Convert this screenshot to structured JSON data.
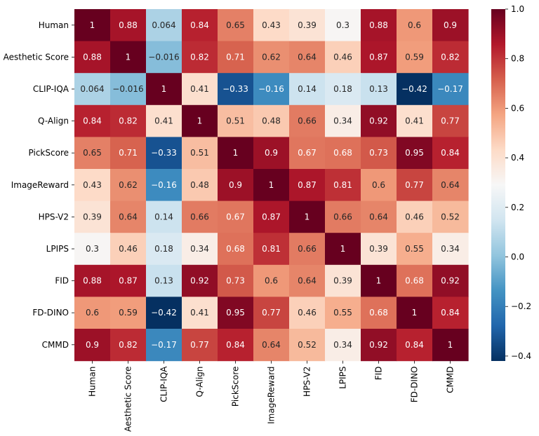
{
  "chart_data": {
    "type": "heatmap",
    "title": "",
    "xlabel": "",
    "ylabel": "",
    "rows": [
      "Human",
      "Aesthetic Score",
      "CLIP-IQA",
      "Q-Align",
      "PickScore",
      "ImageReward",
      "HPS-V2",
      "LPIPS",
      "FID",
      "FD-DINO",
      "CMMD"
    ],
    "columns": [
      "Human",
      "Aesthetic Score",
      "CLIP-IQA",
      "Q-Align",
      "PickScore",
      "ImageReward",
      "HPS-V2",
      "LPIPS",
      "FID",
      "FD-DINO",
      "CMMD"
    ],
    "values": [
      [
        1,
        0.88,
        0.064,
        0.84,
        0.65,
        0.43,
        0.39,
        0.3,
        0.88,
        0.6,
        0.9
      ],
      [
        0.88,
        1,
        -0.016,
        0.82,
        0.71,
        0.62,
        0.64,
        0.46,
        0.87,
        0.59,
        0.82
      ],
      [
        0.064,
        -0.016,
        1,
        0.41,
        -0.33,
        -0.16,
        0.14,
        0.18,
        0.13,
        -0.42,
        -0.17
      ],
      [
        0.84,
        0.82,
        0.41,
        1,
        0.51,
        0.48,
        0.66,
        0.34,
        0.92,
        0.41,
        0.77
      ],
      [
        0.65,
        0.71,
        -0.33,
        0.51,
        1,
        0.9,
        0.67,
        0.68,
        0.73,
        0.95,
        0.84
      ],
      [
        0.43,
        0.62,
        -0.16,
        0.48,
        0.9,
        1,
        0.87,
        0.81,
        0.6,
        0.77,
        0.64
      ],
      [
        0.39,
        0.64,
        0.14,
        0.66,
        0.67,
        0.87,
        1,
        0.66,
        0.64,
        0.46,
        0.52
      ],
      [
        0.3,
        0.46,
        0.18,
        0.34,
        0.68,
        0.81,
        0.66,
        1,
        0.39,
        0.55,
        0.34
      ],
      [
        0.88,
        0.87,
        0.13,
        0.92,
        0.73,
        0.6,
        0.64,
        0.39,
        1,
        0.68,
        0.92
      ],
      [
        0.6,
        0.59,
        -0.42,
        0.41,
        0.95,
        0.77,
        0.46,
        0.55,
        0.68,
        1,
        0.84
      ],
      [
        0.9,
        0.82,
        -0.17,
        0.77,
        0.84,
        0.64,
        0.52,
        0.34,
        0.92,
        0.84,
        1
      ]
    ],
    "colorbar": {
      "min": -0.42,
      "max": 1.0,
      "ticks": [
        1.0,
        0.8,
        0.6,
        0.4,
        0.2,
        0.0,
        -0.2,
        -0.4
      ],
      "tick_labels": [
        "1.0",
        "0.8",
        "0.6",
        "0.4",
        "0.2",
        "0.0",
        "−0.2",
        "−0.4"
      ]
    },
    "colormap": "RdBu_r",
    "colormap_stops": [
      "#053061",
      "#2166ac",
      "#4393c3",
      "#92c5de",
      "#d1e5f0",
      "#f7f7f7",
      "#fddbc7",
      "#f4a582",
      "#d6604d",
      "#b2182b",
      "#67001f"
    ]
  }
}
